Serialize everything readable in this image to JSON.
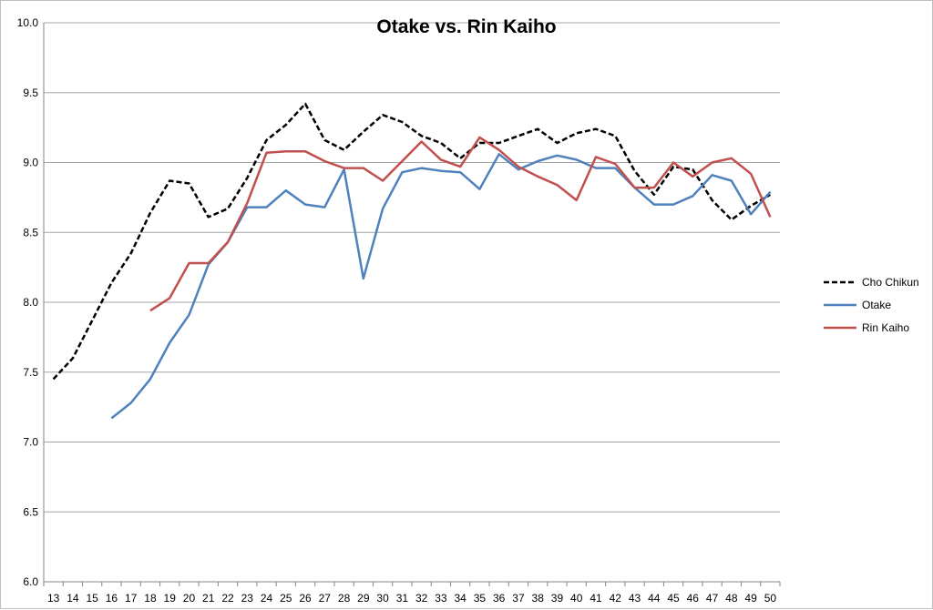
{
  "chart_data": {
    "type": "line",
    "title": "Otake vs. Rin Kaiho",
    "xlabel": "",
    "ylabel": "",
    "ylim": [
      6.0,
      10.0
    ],
    "y_ticks": [
      "6.0",
      "6.5",
      "7.0",
      "7.5",
      "8.0",
      "8.5",
      "9.0",
      "9.5",
      "10.0"
    ],
    "grid": true,
    "legend_position": "right",
    "categories": [
      "13",
      "14",
      "15",
      "16",
      "17",
      "18",
      "19",
      "20",
      "21",
      "22",
      "23",
      "24",
      "25",
      "26",
      "27",
      "28",
      "29",
      "30",
      "31",
      "32",
      "33",
      "34",
      "35",
      "36",
      "37",
      "38",
      "39",
      "40",
      "41",
      "42",
      "43",
      "44",
      "45",
      "46",
      "47",
      "48",
      "49",
      "50"
    ],
    "series": [
      {
        "name": "Cho Chikun",
        "color": "#000000",
        "dash": "dashed",
        "values": [
          7.45,
          7.6,
          7.87,
          8.14,
          8.35,
          8.64,
          8.87,
          8.85,
          8.61,
          8.67,
          8.89,
          9.16,
          9.27,
          9.42,
          9.16,
          9.09,
          9.22,
          9.34,
          9.29,
          9.19,
          9.14,
          9.03,
          9.14,
          9.14,
          9.19,
          9.24,
          9.14,
          9.21,
          9.24,
          9.19,
          8.94,
          8.77,
          8.97,
          8.95,
          8.73,
          8.59,
          8.69,
          8.77
        ]
      },
      {
        "name": "Otake",
        "color": "#4f81bd",
        "dash": "solid",
        "values": [
          null,
          null,
          null,
          7.17,
          7.28,
          7.45,
          7.71,
          7.91,
          8.27,
          8.43,
          8.68,
          8.68,
          8.8,
          8.7,
          8.68,
          8.95,
          8.17,
          8.67,
          8.93,
          8.96,
          8.94,
          8.93,
          8.81,
          9.06,
          8.95,
          9.01,
          9.05,
          9.02,
          8.96,
          8.96,
          8.82,
          8.7,
          8.7,
          8.76,
          8.91,
          8.87,
          8.63,
          8.79
        ]
      },
      {
        "name": "Rin Kaiho",
        "color": "#c0504d",
        "dash": "solid",
        "values": [
          null,
          null,
          null,
          null,
          null,
          7.94,
          8.03,
          8.28,
          8.28,
          8.43,
          8.71,
          9.07,
          9.08,
          9.08,
          9.01,
          8.96,
          8.96,
          8.87,
          9.01,
          9.15,
          9.02,
          8.97,
          9.18,
          9.09,
          8.97,
          8.9,
          8.84,
          8.73,
          9.04,
          8.99,
          8.82,
          8.82,
          9.0,
          8.9,
          9.0,
          9.03,
          8.92,
          8.61
        ]
      }
    ]
  }
}
